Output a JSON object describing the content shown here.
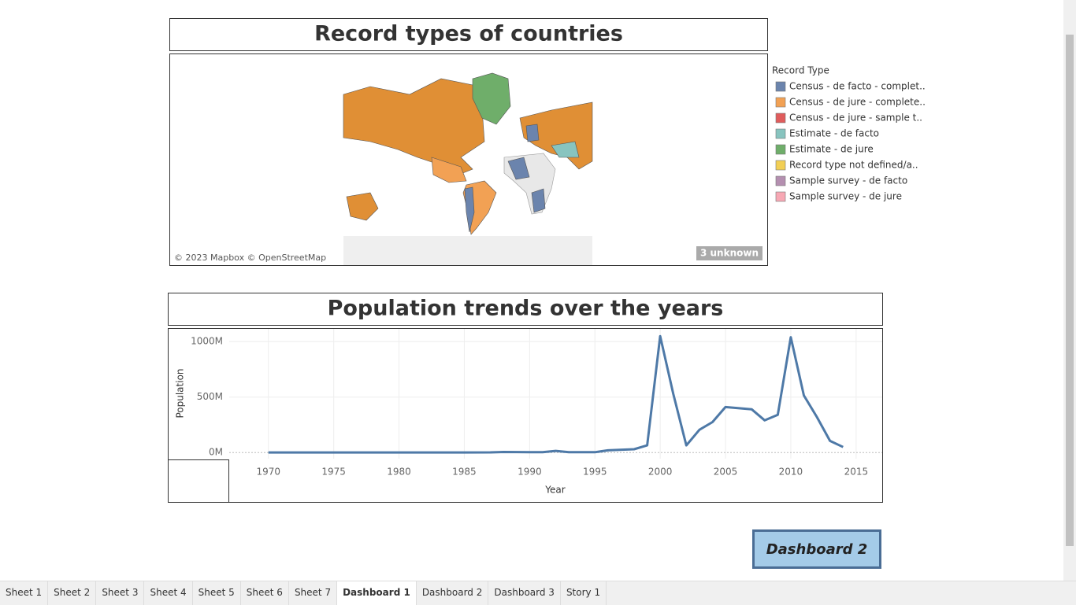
{
  "map": {
    "title": "Record types of countries",
    "attribution": "© 2023 Mapbox © OpenStreetMap",
    "unknown_label": "3 unknown",
    "legend": {
      "title": "Record Type",
      "items": [
        {
          "label": "Census - de facto - complet..",
          "color": "#6b84ad"
        },
        {
          "label": "Census - de jure - complete..",
          "color": "#f2a154"
        },
        {
          "label": "Census - de jure - sample t..",
          "color": "#e05c5c"
        },
        {
          "label": "Estimate - de facto",
          "color": "#88c4bf"
        },
        {
          "label": "Estimate - de jure",
          "color": "#6fae6a"
        },
        {
          "label": "Record type not defined/a..",
          "color": "#f2cf55"
        },
        {
          "label": "Sample survey - de facto",
          "color": "#b48fb0"
        },
        {
          "label": "Sample survey - de jure",
          "color": "#f7a8b4"
        }
      ]
    }
  },
  "chart_data": {
    "type": "line",
    "title": "Population trends over the years",
    "x_label": "Year",
    "y_label": "Population",
    "x": [
      1970,
      1975,
      1980,
      1985,
      1987,
      1988,
      1990,
      1991,
      1992,
      1993,
      1995,
      1996,
      1998,
      1999,
      2000,
      2001,
      2002,
      2003,
      2004,
      2005,
      2007,
      2008,
      2009,
      2010,
      2011,
      2012,
      2013,
      2014
    ],
    "values": [
      1,
      1,
      1,
      1,
      2,
      5,
      3,
      4,
      15,
      3,
      3,
      20,
      30,
      65,
      1050,
      530,
      65,
      205,
      275,
      410,
      390,
      290,
      340,
      1040,
      515,
      320,
      105,
      50
    ],
    "color": "#4e79a7",
    "xlim": [
      1967,
      2017
    ],
    "xticks": [
      1970,
      1975,
      1980,
      1985,
      1990,
      1995,
      2000,
      2005,
      2010,
      2015
    ],
    "ylim": [
      -55,
      1115
    ],
    "yticks": [
      {
        "value": 0,
        "label": "0M"
      },
      {
        "value": 500,
        "label": "500M"
      },
      {
        "value": 1000,
        "label": "1000M"
      }
    ],
    "grid": true
  },
  "navigation": {
    "button": "Dashboard 2",
    "tabs": [
      "Sheet 1",
      "Sheet 2",
      "Sheet 3",
      "Sheet 4",
      "Sheet 5",
      "Sheet 6",
      "Sheet 7",
      "Dashboard 1",
      "Dashboard 2",
      "Dashboard 3",
      "Story 1"
    ],
    "active_tab": "Dashboard 1"
  }
}
